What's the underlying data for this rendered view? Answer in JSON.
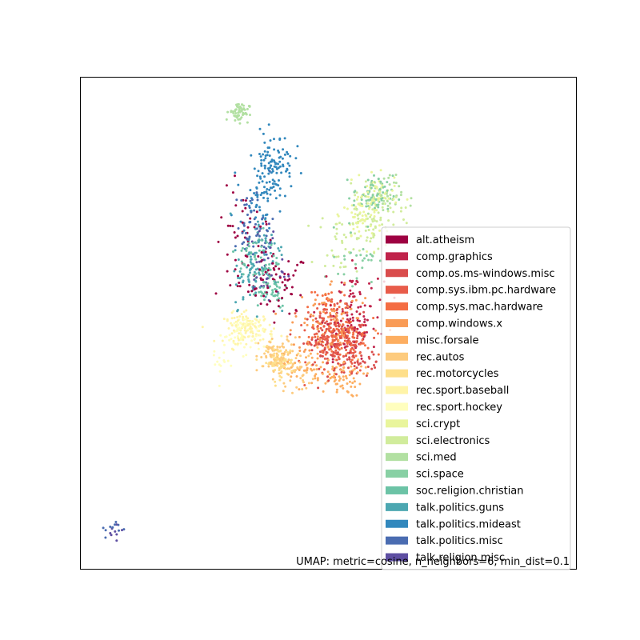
{
  "chart_data": {
    "type": "scatter",
    "title": "",
    "xlabel": "",
    "ylabel": "",
    "grid": false,
    "axis_ticks": false,
    "legend_position": "center-right",
    "annotation": "UMAP: metric=cosine, n_neighbors=6, min_dist=0.1",
    "xlim": [
      0,
      100
    ],
    "ylim": [
      0,
      100
    ],
    "marker_size": 1.5,
    "series": [
      {
        "name": "alt.atheism",
        "color": "#9e0142",
        "clusters": [
          {
            "x": 40,
            "y": 58,
            "sx": 3,
            "sy": 3,
            "n": 60
          },
          {
            "x": 33,
            "y": 65,
            "sx": 3,
            "sy": 6,
            "n": 55
          }
        ]
      },
      {
        "name": "comp.graphics",
        "color": "#c0234b",
        "clusters": [
          {
            "x": 54,
            "y": 49,
            "sx": 3,
            "sy": 3,
            "n": 80
          },
          {
            "x": 55,
            "y": 56,
            "sx": 3,
            "sy": 3,
            "n": 40
          }
        ]
      },
      {
        "name": "comp.os.ms-windows.misc",
        "color": "#d94c4c",
        "clusters": [
          {
            "x": 51,
            "y": 47,
            "sx": 3,
            "sy": 3,
            "n": 90
          },
          {
            "x": 56,
            "y": 42,
            "sx": 3,
            "sy": 2,
            "n": 40
          }
        ]
      },
      {
        "name": "comp.sys.ibm.pc.hardware",
        "color": "#e85c4a",
        "clusters": [
          {
            "x": 52,
            "y": 45,
            "sx": 3,
            "sy": 3,
            "n": 100
          },
          {
            "x": 49,
            "y": 50,
            "sx": 2,
            "sy": 2,
            "n": 40
          }
        ]
      },
      {
        "name": "comp.sys.mac.hardware",
        "color": "#f46d43",
        "clusters": [
          {
            "x": 53,
            "y": 47,
            "sx": 3,
            "sy": 2,
            "n": 90
          },
          {
            "x": 50,
            "y": 54,
            "sx": 2,
            "sy": 2,
            "n": 30
          }
        ]
      },
      {
        "name": "comp.windows.x",
        "color": "#f99b56",
        "clusters": [
          {
            "x": 51,
            "y": 51,
            "sx": 4,
            "sy": 4,
            "n": 80
          },
          {
            "x": 48,
            "y": 48,
            "sx": 2,
            "sy": 2,
            "n": 30
          }
        ]
      },
      {
        "name": "misc.forsale",
        "color": "#fdae61",
        "clusters": [
          {
            "x": 52,
            "y": 39,
            "sx": 2.5,
            "sy": 2,
            "n": 70
          },
          {
            "x": 45,
            "y": 41,
            "sx": 2,
            "sy": 2,
            "n": 40
          }
        ]
      },
      {
        "name": "rec.autos",
        "color": "#fdcb7e",
        "clusters": [
          {
            "x": 40,
            "y": 43,
            "sx": 2,
            "sy": 2,
            "n": 90
          },
          {
            "x": 44,
            "y": 40,
            "sx": 2,
            "sy": 2,
            "n": 30
          }
        ]
      },
      {
        "name": "rec.motorcycles",
        "color": "#fedf8b",
        "clusters": [
          {
            "x": 40,
            "y": 42,
            "sx": 1.5,
            "sy": 1.5,
            "n": 80
          }
        ]
      },
      {
        "name": "rec.sport.baseball",
        "color": "#fff4a8",
        "clusters": [
          {
            "x": 34,
            "y": 49,
            "sx": 2.5,
            "sy": 1.5,
            "n": 100
          }
        ]
      },
      {
        "name": "rec.sport.hockey",
        "color": "#fffebe",
        "clusters": [
          {
            "x": 33,
            "y": 48,
            "sx": 2,
            "sy": 2,
            "n": 70
          },
          {
            "x": 28,
            "y": 42,
            "sx": 1,
            "sy": 2,
            "n": 15
          }
        ]
      },
      {
        "name": "sci.crypt",
        "color": "#e9f59c",
        "clusters": [
          {
            "x": 57,
            "y": 72,
            "sx": 2,
            "sy": 3,
            "n": 70
          },
          {
            "x": 60,
            "y": 76,
            "sx": 2,
            "sy": 2,
            "n": 40
          }
        ]
      },
      {
        "name": "sci.electronics",
        "color": "#d1ec9c",
        "clusters": [
          {
            "x": 59,
            "y": 71,
            "sx": 3,
            "sy": 3,
            "n": 70
          },
          {
            "x": 52,
            "y": 66,
            "sx": 2,
            "sy": 3,
            "n": 30
          }
        ]
      },
      {
        "name": "sci.med",
        "color": "#b2e0a2",
        "clusters": [
          {
            "x": 32,
            "y": 93,
            "sx": 1,
            "sy": 1,
            "n": 60
          },
          {
            "x": 61,
            "y": 76,
            "sx": 2,
            "sy": 2,
            "n": 40
          }
        ]
      },
      {
        "name": "sci.space",
        "color": "#88d0a4",
        "clusters": [
          {
            "x": 59,
            "y": 76,
            "sx": 2,
            "sy": 2,
            "n": 70
          },
          {
            "x": 56,
            "y": 64,
            "sx": 2,
            "sy": 3,
            "n": 30
          }
        ]
      },
      {
        "name": "soc.religion.christian",
        "color": "#6cc3a6",
        "clusters": [
          {
            "x": 36,
            "y": 63,
            "sx": 2,
            "sy": 3,
            "n": 60
          },
          {
            "x": 38,
            "y": 57,
            "sx": 2,
            "sy": 2,
            "n": 40
          }
        ]
      },
      {
        "name": "talk.politics.guns",
        "color": "#4ca7b1",
        "clusters": [
          {
            "x": 35,
            "y": 59,
            "sx": 2,
            "sy": 3,
            "n": 60
          },
          {
            "x": 37,
            "y": 66,
            "sx": 2,
            "sy": 3,
            "n": 40
          }
        ]
      },
      {
        "name": "talk.politics.mideast",
        "color": "#3288bd",
        "clusters": [
          {
            "x": 39,
            "y": 83,
            "sx": 2,
            "sy": 3,
            "n": 90
          },
          {
            "x": 36,
            "y": 76,
            "sx": 2,
            "sy": 3,
            "n": 60
          }
        ]
      },
      {
        "name": "talk.politics.misc",
        "color": "#4a6cb1",
        "clusters": [
          {
            "x": 35,
            "y": 70,
            "sx": 2,
            "sy": 4,
            "n": 50
          },
          {
            "x": 7,
            "y": 8,
            "sx": 1,
            "sy": 1,
            "n": 10
          }
        ]
      },
      {
        "name": "talk.religion.misc",
        "color": "#5e4fa2",
        "clusters": [
          {
            "x": 37,
            "y": 62,
            "sx": 2,
            "sy": 4,
            "n": 40
          },
          {
            "x": 7,
            "y": 8,
            "sx": 1,
            "sy": 1,
            "n": 8
          }
        ]
      }
    ]
  }
}
